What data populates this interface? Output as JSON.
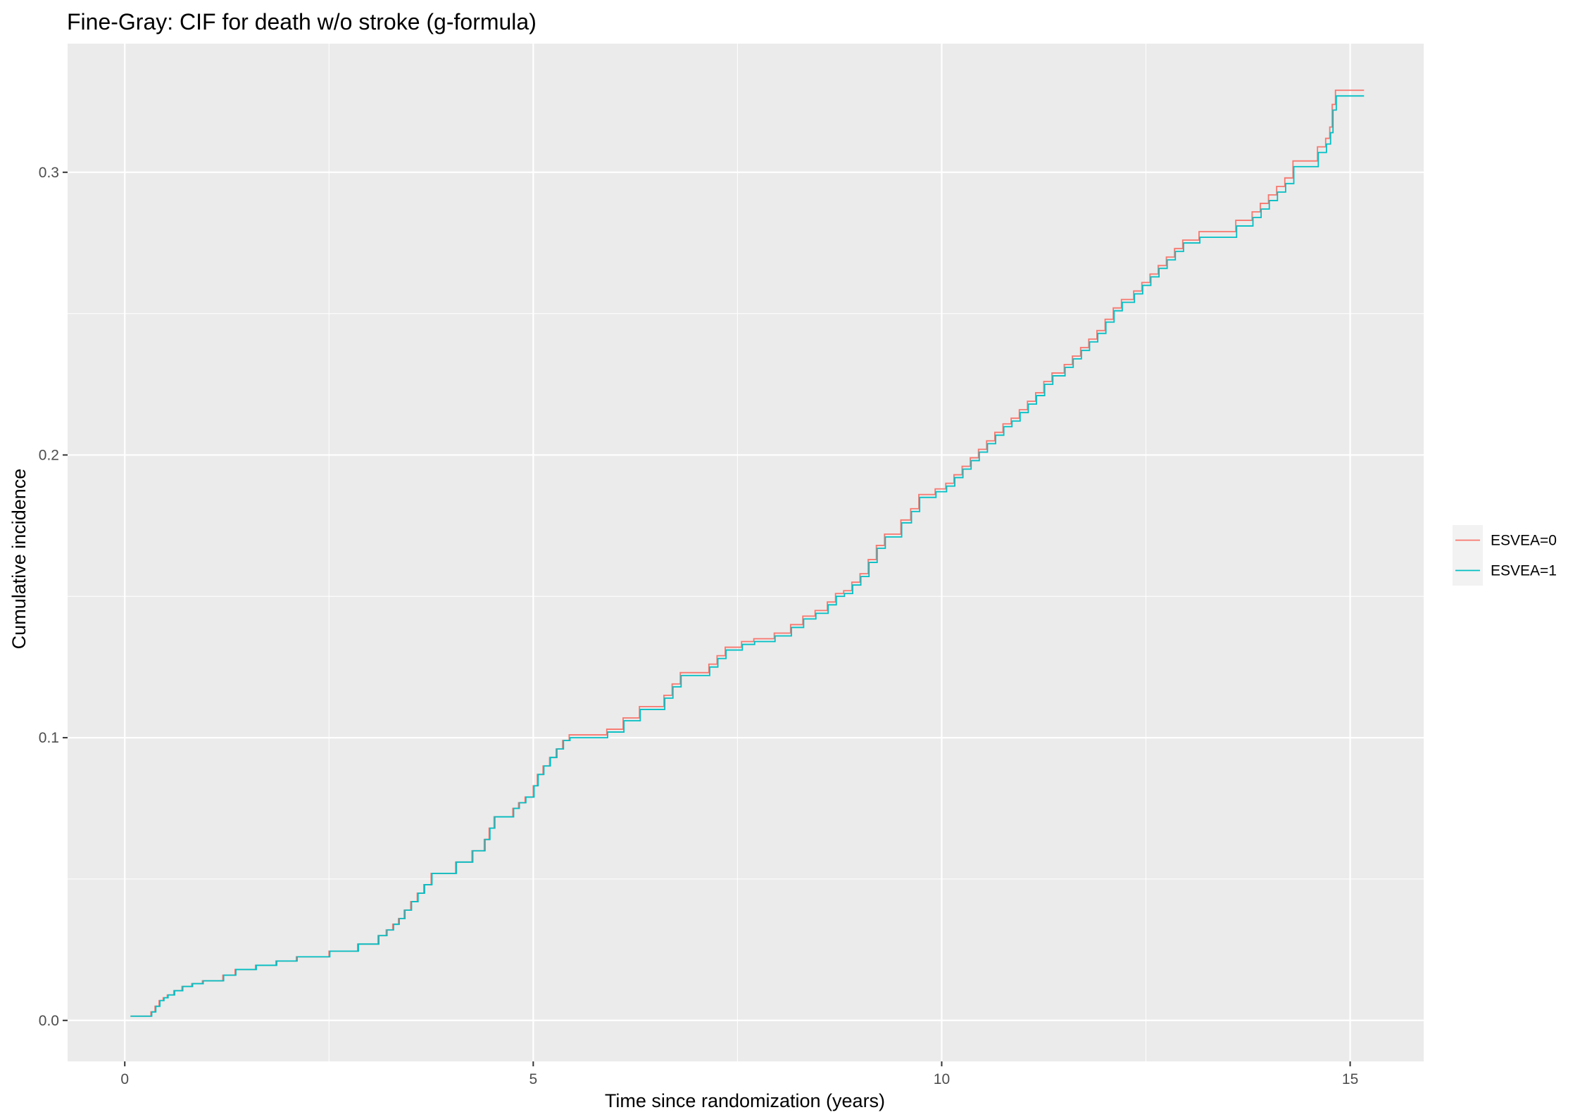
{
  "chart_data": {
    "type": "line",
    "title": "Fine-Gray: CIF for death w/o stroke (g-formula)",
    "xlabel": "Time since randomization (years)",
    "ylabel": "Cumulative incidence",
    "xlim": [
      -0.7,
      15.9
    ],
    "ylim": [
      -0.0145,
      0.3455
    ],
    "x_ticks": [
      0,
      5,
      10,
      15
    ],
    "x_tick_labels": [
      "0",
      "5",
      "10",
      "15"
    ],
    "y_ticks": [
      0.0,
      0.1,
      0.2,
      0.3
    ],
    "y_tick_labels": [
      "0.0",
      "0.1",
      "0.2",
      "0.3"
    ],
    "grid": true,
    "step": true,
    "legend_position": "right",
    "colors": {
      "panel_bg": "#ebebeb",
      "grid": "#ffffff"
    },
    "series": [
      {
        "name": "ESVEA=0",
        "color": "#f8766d",
        "x": [
          0.07,
          0.32,
          0.37,
          0.42,
          0.47,
          0.52,
          0.6,
          0.7,
          0.82,
          0.95,
          1.2,
          1.35,
          1.6,
          1.85,
          2.1,
          2.5,
          2.85,
          3.1,
          3.2,
          3.28,
          3.35,
          3.42,
          3.5,
          3.58,
          3.66,
          3.75,
          4.05,
          4.25,
          4.4,
          4.46,
          4.52,
          4.75,
          4.82,
          4.9,
          5.0,
          5.05,
          5.12,
          5.2,
          5.28,
          5.36,
          5.44,
          5.52,
          5.9,
          6.1,
          6.3,
          6.6,
          6.7,
          6.8,
          7.15,
          7.25,
          7.35,
          7.55,
          7.7,
          7.95,
          8.15,
          8.3,
          8.45,
          8.6,
          8.7,
          8.8,
          8.9,
          9.0,
          9.1,
          9.2,
          9.3,
          9.5,
          9.62,
          9.72,
          9.92,
          10.05,
          10.15,
          10.25,
          10.35,
          10.45,
          10.55,
          10.65,
          10.75,
          10.85,
          10.95,
          11.05,
          11.15,
          11.25,
          11.35,
          11.5,
          11.6,
          11.7,
          11.8,
          11.9,
          12.0,
          12.1,
          12.2,
          12.35,
          12.45,
          12.55,
          12.65,
          12.75,
          12.85,
          12.95,
          13.15,
          13.6,
          13.8,
          13.9,
          14.0,
          14.1,
          14.2,
          14.3,
          14.6,
          14.7,
          14.75,
          14.78,
          14.82,
          15.17
        ],
        "y": [
          0.0015,
          0.003,
          0.005,
          0.007,
          0.008,
          0.009,
          0.0105,
          0.012,
          0.013,
          0.014,
          0.016,
          0.018,
          0.0195,
          0.021,
          0.0225,
          0.0245,
          0.027,
          0.03,
          0.032,
          0.034,
          0.036,
          0.039,
          0.042,
          0.045,
          0.048,
          0.052,
          0.056,
          0.06,
          0.064,
          0.068,
          0.072,
          0.075,
          0.077,
          0.079,
          0.083,
          0.087,
          0.09,
          0.093,
          0.096,
          0.099,
          0.101,
          0.101,
          0.103,
          0.107,
          0.111,
          0.115,
          0.119,
          0.123,
          0.126,
          0.129,
          0.132,
          0.134,
          0.135,
          0.137,
          0.14,
          0.143,
          0.145,
          0.148,
          0.151,
          0.152,
          0.155,
          0.158,
          0.163,
          0.168,
          0.172,
          0.177,
          0.181,
          0.186,
          0.188,
          0.19,
          0.193,
          0.196,
          0.199,
          0.202,
          0.205,
          0.208,
          0.211,
          0.213,
          0.216,
          0.219,
          0.222,
          0.226,
          0.229,
          0.232,
          0.235,
          0.238,
          0.241,
          0.244,
          0.248,
          0.252,
          0.255,
          0.258,
          0.261,
          0.264,
          0.267,
          0.27,
          0.273,
          0.276,
          0.279,
          0.283,
          0.286,
          0.289,
          0.292,
          0.295,
          0.298,
          0.304,
          0.309,
          0.312,
          0.316,
          0.324,
          0.329,
          0.329
        ]
      },
      {
        "name": "ESVEA=1",
        "color": "#00bfc4",
        "x": [
          0.07,
          0.33,
          0.38,
          0.43,
          0.48,
          0.53,
          0.61,
          0.71,
          0.83,
          0.96,
          1.21,
          1.36,
          1.61,
          1.86,
          2.11,
          2.51,
          2.86,
          3.11,
          3.21,
          3.29,
          3.36,
          3.43,
          3.51,
          3.59,
          3.67,
          3.76,
          4.06,
          4.26,
          4.41,
          4.47,
          4.53,
          4.76,
          4.83,
          4.91,
          5.01,
          5.06,
          5.13,
          5.21,
          5.29,
          5.37,
          5.45,
          5.53,
          5.91,
          6.11,
          6.31,
          6.61,
          6.71,
          6.81,
          7.16,
          7.26,
          7.36,
          7.56,
          7.71,
          7.96,
          8.16,
          8.31,
          8.46,
          8.61,
          8.71,
          8.81,
          8.91,
          9.01,
          9.11,
          9.21,
          9.31,
          9.51,
          9.63,
          9.73,
          9.93,
          10.06,
          10.16,
          10.26,
          10.36,
          10.46,
          10.56,
          10.66,
          10.76,
          10.86,
          10.96,
          11.06,
          11.16,
          11.26,
          11.36,
          11.51,
          11.61,
          11.71,
          11.81,
          11.91,
          12.01,
          12.11,
          12.21,
          12.36,
          12.46,
          12.56,
          12.66,
          12.76,
          12.86,
          12.96,
          13.16,
          13.61,
          13.81,
          13.91,
          14.01,
          14.11,
          14.21,
          14.31,
          14.61,
          14.71,
          14.76,
          14.79,
          14.83,
          15.17
        ],
        "y": [
          0.0015,
          0.003,
          0.005,
          0.007,
          0.008,
          0.009,
          0.0105,
          0.012,
          0.013,
          0.014,
          0.016,
          0.018,
          0.0195,
          0.021,
          0.0225,
          0.0245,
          0.027,
          0.03,
          0.032,
          0.034,
          0.036,
          0.039,
          0.042,
          0.045,
          0.048,
          0.052,
          0.056,
          0.06,
          0.064,
          0.068,
          0.072,
          0.075,
          0.077,
          0.079,
          0.083,
          0.087,
          0.09,
          0.093,
          0.096,
          0.099,
          0.1,
          0.1,
          0.102,
          0.106,
          0.11,
          0.114,
          0.118,
          0.122,
          0.125,
          0.128,
          0.131,
          0.133,
          0.134,
          0.136,
          0.139,
          0.142,
          0.144,
          0.147,
          0.15,
          0.151,
          0.154,
          0.157,
          0.162,
          0.167,
          0.171,
          0.176,
          0.18,
          0.185,
          0.187,
          0.189,
          0.192,
          0.195,
          0.198,
          0.201,
          0.204,
          0.207,
          0.21,
          0.212,
          0.215,
          0.218,
          0.221,
          0.225,
          0.228,
          0.231,
          0.234,
          0.237,
          0.24,
          0.243,
          0.247,
          0.251,
          0.254,
          0.257,
          0.26,
          0.263,
          0.266,
          0.269,
          0.272,
          0.275,
          0.277,
          0.281,
          0.284,
          0.287,
          0.29,
          0.293,
          0.296,
          0.302,
          0.307,
          0.31,
          0.314,
          0.322,
          0.327,
          0.327
        ]
      }
    ]
  }
}
